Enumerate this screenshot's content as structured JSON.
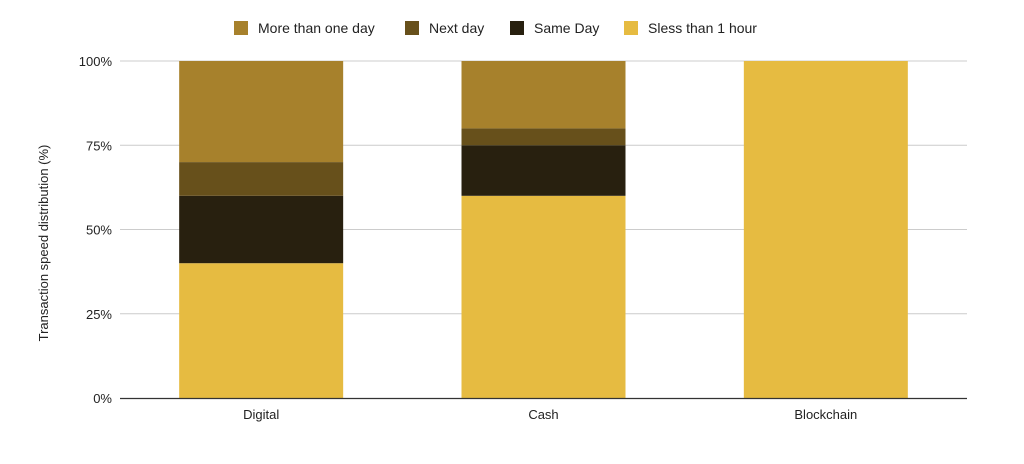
{
  "chart_data": {
    "type": "bar",
    "stacked": true,
    "percent": true,
    "categories": [
      "Digital",
      "Cash",
      "Blockchain"
    ],
    "series": [
      {
        "name": "Sless than 1 hour",
        "values": [
          40,
          60,
          100
        ],
        "color": "#e6bb41"
      },
      {
        "name": "Same Day",
        "values": [
          20,
          15,
          0
        ],
        "color": "#28200f"
      },
      {
        "name": "Next day",
        "values": [
          10,
          5,
          0
        ],
        "color": "#67501b"
      },
      {
        "name": "More than one day",
        "values": [
          30,
          20,
          0
        ],
        "color": "#a7812c"
      }
    ],
    "legend_order": [
      "More than one day",
      "Next day",
      "Same Day",
      "Sless than 1 hour"
    ],
    "ylabel": "Transaction speed distribution (%)",
    "ylim": [
      0,
      100
    ],
    "yticks": [
      0,
      25,
      50,
      75,
      100
    ],
    "ytick_labels": [
      "0%",
      "25%",
      "50%",
      "75%",
      "100%"
    ],
    "legend_position": "top",
    "grid": true
  }
}
